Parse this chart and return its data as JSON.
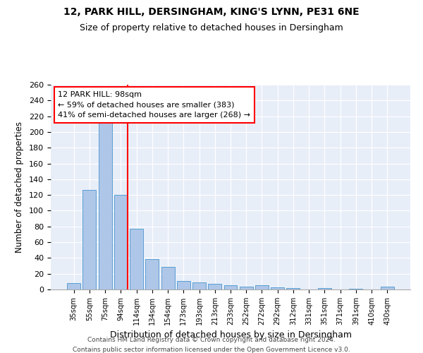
{
  "title_line1": "12, PARK HILL, DERSINGHAM, KING'S LYNN, PE31 6NE",
  "title_line2": "Size of property relative to detached houses in Dersingham",
  "xlabel": "Distribution of detached houses by size in Dersingham",
  "ylabel": "Number of detached properties",
  "categories": [
    "35sqm",
    "55sqm",
    "75sqm",
    "94sqm",
    "114sqm",
    "134sqm",
    "154sqm",
    "173sqm",
    "193sqm",
    "213sqm",
    "233sqm",
    "252sqm",
    "272sqm",
    "292sqm",
    "312sqm",
    "331sqm",
    "351sqm",
    "371sqm",
    "391sqm",
    "410sqm",
    "430sqm"
  ],
  "values": [
    8,
    126,
    218,
    120,
    77,
    39,
    29,
    11,
    9,
    7,
    5,
    4,
    5,
    3,
    2,
    0,
    2,
    0,
    1,
    0,
    4
  ],
  "bar_color": "#aec6e8",
  "bar_edge_color": "#5a9fd4",
  "vline_color": "red",
  "vline_x_index": 3,
  "annotation_line1": "12 PARK HILL: 98sqm",
  "annotation_line2": "← 59% of detached houses are smaller (383)",
  "annotation_line3": "41% of semi-detached houses are larger (268) →",
  "annotation_box_color": "white",
  "annotation_box_edge": "red",
  "ylim": [
    0,
    260
  ],
  "yticks": [
    0,
    20,
    40,
    60,
    80,
    100,
    120,
    140,
    160,
    180,
    200,
    220,
    240,
    260
  ],
  "background_color": "#e8eef8",
  "footer_line1": "Contains HM Land Registry data © Crown copyright and database right 2024.",
  "footer_line2": "Contains public sector information licensed under the Open Government Licence v3.0."
}
